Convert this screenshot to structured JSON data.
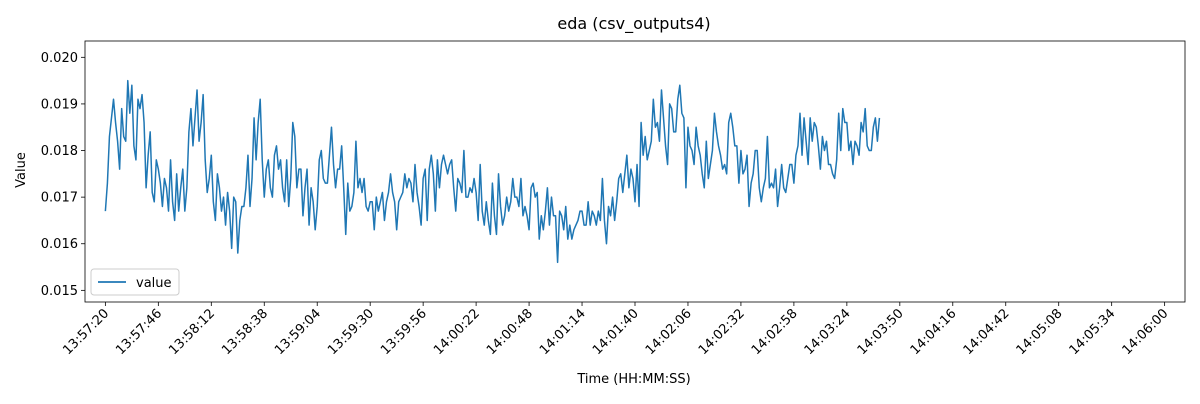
{
  "chart_data": {
    "type": "line",
    "title": "eda (csv_outputs4)",
    "xlabel": "Time (HH:MM:SS)",
    "ylabel": "Value",
    "x_tick_labels": [
      "13:57:20",
      "13:57:46",
      "13:58:12",
      "13:58:38",
      "13:59:04",
      "13:59:30",
      "13:59:56",
      "14:00:22",
      "14:00:48",
      "14:01:14",
      "14:01:40",
      "14:02:06",
      "14:02:32",
      "14:02:58",
      "14:03:24",
      "14:03:50",
      "14:04:16",
      "14:04:42",
      "14:05:08",
      "14:05:34",
      "14:06:00"
    ],
    "y_ticks": [
      0.015,
      0.016,
      0.017,
      0.018,
      0.019,
      0.02
    ],
    "y_tick_labels": [
      "0.015",
      "0.016",
      "0.017",
      "0.018",
      "0.019",
      "0.020"
    ],
    "ylim": [
      0.01475,
      0.02035
    ],
    "xlim": [
      "13:57:10",
      "14:06:10"
    ],
    "legend_position": "lower-left",
    "grid": false,
    "series": [
      {
        "name": "value",
        "color": "#1f77b4",
        "sample_interval_s": 1,
        "values": [
          0.0167,
          0.0173,
          0.0183,
          0.0187,
          0.0191,
          0.0186,
          0.0182,
          0.0176,
          0.0189,
          0.0183,
          0.0182,
          0.0195,
          0.0188,
          0.0194,
          0.0181,
          0.0178,
          0.0191,
          0.0189,
          0.0192,
          0.0186,
          0.0172,
          0.0179,
          0.0184,
          0.0171,
          0.0169,
          0.0178,
          0.0176,
          0.0173,
          0.0168,
          0.0174,
          0.0172,
          0.0167,
          0.0178,
          0.0169,
          0.0165,
          0.0175,
          0.0167,
          0.0172,
          0.0176,
          0.0167,
          0.0172,
          0.0184,
          0.0189,
          0.0181,
          0.0187,
          0.0193,
          0.0182,
          0.0186,
          0.0192,
          0.0178,
          0.0171,
          0.0174,
          0.0179,
          0.0169,
          0.0165,
          0.0175,
          0.0172,
          0.0167,
          0.017,
          0.0164,
          0.0171,
          0.0167,
          0.0159,
          0.017,
          0.0169,
          0.0158,
          0.0165,
          0.0168,
          0.0168,
          0.0172,
          0.0179,
          0.0168,
          0.0174,
          0.0187,
          0.0178,
          0.0186,
          0.0191,
          0.0178,
          0.017,
          0.0176,
          0.0178,
          0.0172,
          0.017,
          0.0179,
          0.0181,
          0.0176,
          0.0178,
          0.0172,
          0.0169,
          0.0178,
          0.0168,
          0.0174,
          0.0186,
          0.0183,
          0.0172,
          0.0176,
          0.0176,
          0.0166,
          0.0172,
          0.0176,
          0.0164,
          0.0172,
          0.0169,
          0.0163,
          0.0168,
          0.0178,
          0.018,
          0.0174,
          0.0173,
          0.0173,
          0.0179,
          0.0185,
          0.0177,
          0.0172,
          0.0176,
          0.0176,
          0.0181,
          0.0172,
          0.0162,
          0.0173,
          0.0167,
          0.0168,
          0.0171,
          0.0182,
          0.0172,
          0.0174,
          0.0171,
          0.0174,
          0.0168,
          0.0167,
          0.0169,
          0.0169,
          0.0163,
          0.017,
          0.0167,
          0.0169,
          0.0171,
          0.0165,
          0.0169,
          0.0171,
          0.0175,
          0.0171,
          0.0169,
          0.0163,
          0.0169,
          0.017,
          0.0171,
          0.0175,
          0.0172,
          0.0174,
          0.0173,
          0.0169,
          0.0177,
          0.0171,
          0.0168,
          0.0164,
          0.0174,
          0.0176,
          0.0165,
          0.0176,
          0.0179,
          0.0175,
          0.0167,
          0.0178,
          0.0172,
          0.0177,
          0.0179,
          0.0177,
          0.0175,
          0.0177,
          0.0178,
          0.0172,
          0.0167,
          0.0174,
          0.0173,
          0.0171,
          0.018,
          0.017,
          0.017,
          0.0172,
          0.0171,
          0.0174,
          0.0171,
          0.0165,
          0.0177,
          0.0167,
          0.0164,
          0.0169,
          0.0165,
          0.0162,
          0.0173,
          0.0166,
          0.0162,
          0.0175,
          0.0168,
          0.0164,
          0.0166,
          0.017,
          0.0167,
          0.0169,
          0.0174,
          0.017,
          0.017,
          0.0168,
          0.0174,
          0.0166,
          0.0168,
          0.0166,
          0.0163,
          0.0172,
          0.0173,
          0.017,
          0.0171,
          0.0161,
          0.0166,
          0.0163,
          0.0167,
          0.0172,
          0.0164,
          0.017,
          0.0166,
          0.0166,
          0.0156,
          0.0167,
          0.0166,
          0.0163,
          0.0168,
          0.0161,
          0.0164,
          0.0161,
          0.0163,
          0.0164,
          0.0165,
          0.0167,
          0.0167,
          0.0164,
          0.0164,
          0.0169,
          0.0164,
          0.0167,
          0.0166,
          0.0164,
          0.0167,
          0.0165,
          0.0174,
          0.0165,
          0.016,
          0.0168,
          0.0166,
          0.017,
          0.0165,
          0.0169,
          0.0174,
          0.0175,
          0.0171,
          0.0175,
          0.0179,
          0.0172,
          0.0176,
          0.0174,
          0.0169,
          0.0177,
          0.0168,
          0.0186,
          0.0179,
          0.0183,
          0.0178,
          0.018,
          0.0182,
          0.0191,
          0.0185,
          0.0186,
          0.0182,
          0.0193,
          0.0187,
          0.0181,
          0.0177,
          0.019,
          0.0189,
          0.0184,
          0.0184,
          0.0191,
          0.0194,
          0.0188,
          0.0187,
          0.0172,
          0.0185,
          0.0181,
          0.018,
          0.0177,
          0.0185,
          0.0181,
          0.0179,
          0.0175,
          0.0172,
          0.0182,
          0.0174,
          0.0177,
          0.018,
          0.0188,
          0.0184,
          0.0181,
          0.0179,
          0.0176,
          0.0177,
          0.0175,
          0.0186,
          0.0188,
          0.0185,
          0.0181,
          0.0181,
          0.0173,
          0.018,
          0.0175,
          0.0176,
          0.0179,
          0.0168,
          0.0173,
          0.0175,
          0.018,
          0.018,
          0.0172,
          0.0169,
          0.0172,
          0.0174,
          0.0183,
          0.0172,
          0.0173,
          0.0172,
          0.0176,
          0.0168,
          0.0172,
          0.0177,
          0.0172,
          0.0171,
          0.0174,
          0.0177,
          0.0177,
          0.0173,
          0.0179,
          0.0181,
          0.0188,
          0.0179,
          0.0187,
          0.0182,
          0.0177,
          0.0187,
          0.0182,
          0.0186,
          0.0185,
          0.0181,
          0.0176,
          0.0183,
          0.018,
          0.0182,
          0.0177,
          0.0177,
          0.0175,
          0.0174,
          0.0178,
          0.0188,
          0.018,
          0.0189,
          0.0186,
          0.0186,
          0.018,
          0.0182,
          0.0177,
          0.0182,
          0.0181,
          0.0179,
          0.0186,
          0.0184,
          0.0189,
          0.0181,
          0.018,
          0.018,
          0.0185,
          0.0187,
          0.0182,
          0.0187
        ]
      }
    ]
  }
}
